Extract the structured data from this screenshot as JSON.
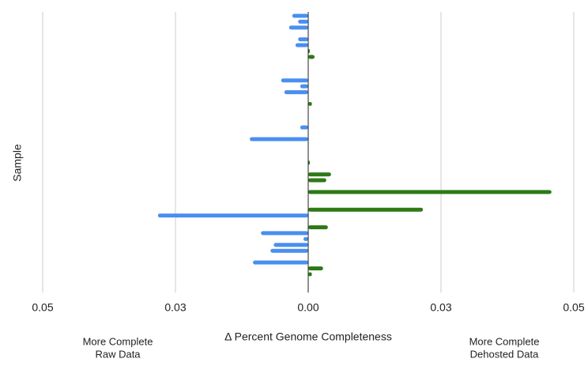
{
  "chart_data": {
    "type": "bar",
    "orientation": "horizontal",
    "x_axis_label": "Δ Percent Genome Completeness",
    "y_axis_label": "Sample",
    "annotations": [
      [
        "More Complete",
        "Raw Data"
      ],
      [
        "More Complete",
        "Dehosted Data"
      ]
    ],
    "categories": [
      null,
      null,
      null,
      null,
      null,
      null,
      null,
      null,
      null,
      null,
      null,
      null,
      null,
      null,
      null,
      null,
      null,
      null,
      null,
      null,
      null,
      null,
      null,
      null,
      null,
      null,
      null,
      null,
      null,
      null,
      null,
      null,
      null,
      null,
      null,
      null,
      null,
      null,
      null,
      null,
      null,
      null,
      null,
      null,
      null
    ],
    "values": [
      -0.003,
      -0.0019,
      -0.0036,
      null,
      -0.0019,
      -0.0024,
      0.0003,
      0.0012,
      null,
      null,
      null,
      -0.0051,
      -0.0015,
      -0.0045,
      null,
      0.0007,
      null,
      null,
      null,
      -0.0015,
      null,
      -0.011,
      null,
      null,
      null,
      0.0003,
      null,
      0.0043,
      0.0034,
      null,
      0.0458,
      null,
      null,
      0.0216,
      -0.0283,
      null,
      0.0037,
      -0.0089,
      -0.0009,
      -0.0065,
      -0.0071,
      null,
      -0.0104,
      0.0028,
      0.0007
    ],
    "negative_color": "#4a8ff0",
    "positive_color": "#2e7a17",
    "xlim": [
      -0.05,
      0.05
    ],
    "xticks": [
      {
        "value": -0.05,
        "label": "0.05"
      },
      {
        "value": -0.025,
        "label": "0.03"
      },
      {
        "value": 0,
        "label": "0.00"
      },
      {
        "value": 0.025,
        "label": "0.03"
      },
      {
        "value": 0.05,
        "label": "0.05"
      }
    ],
    "grid": true
  }
}
